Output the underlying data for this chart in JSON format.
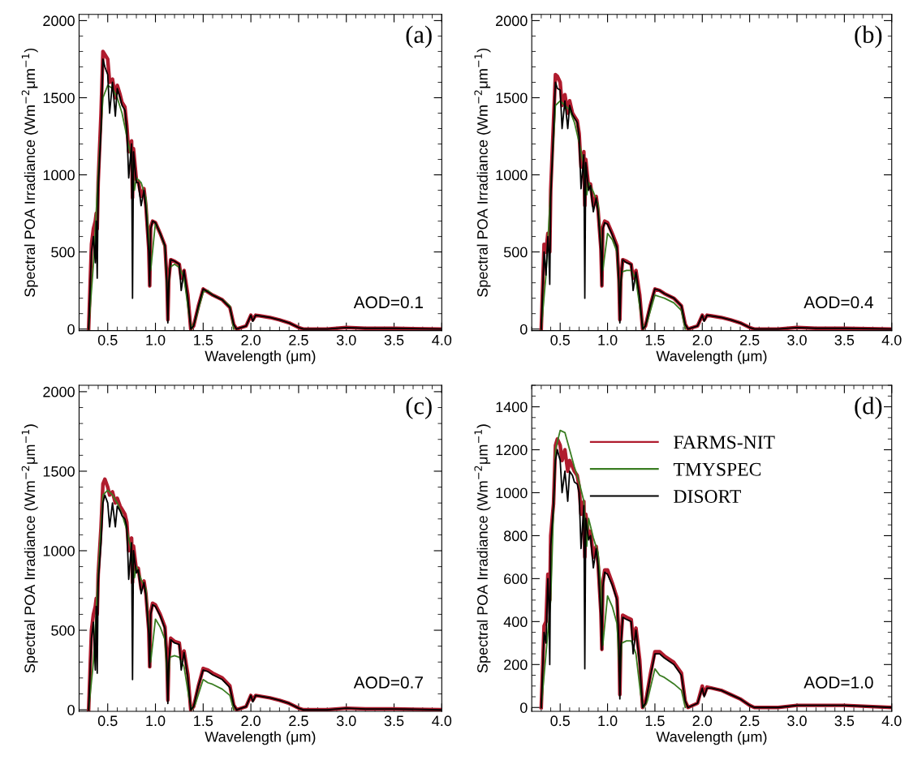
{
  "chart_data": [
    {
      "type": "line",
      "xlabel": "Wavelength (μm)",
      "ylabel": "Spectral POA Irradiance (Wm$^{−2}$μm$^{−1}$)",
      "xlim": [
        0.2,
        4.0
      ],
      "xticks": [
        {
          "value": 0.5,
          "label": "0.5"
        },
        {
          "value": 1.0,
          "label": "1.0"
        },
        {
          "value": 1.5,
          "label": "1.5"
        },
        {
          "value": 2.0,
          "label": "2.0"
        },
        {
          "value": 2.5,
          "label": "2.5"
        },
        {
          "value": 3.0,
          "label": "3.0"
        },
        {
          "value": 3.5,
          "label": "3.5"
        },
        {
          "value": 4.0,
          "label": "4.0"
        }
      ],
      "ylim": [
        -10,
        2040
      ],
      "yticks": [
        0,
        500,
        1000,
        1500,
        2000
      ],
      "annotations": [
        "(a)",
        "AOD=0.1"
      ],
      "line_style": "solid",
      "x": [
        0.3,
        0.33,
        0.35,
        0.37,
        0.38,
        0.39,
        0.4,
        0.43,
        0.45,
        0.47,
        0.5,
        0.52,
        0.55,
        0.58,
        0.6,
        0.63,
        0.65,
        0.68,
        0.7,
        0.72,
        0.75,
        0.76,
        0.77,
        0.8,
        0.82,
        0.85,
        0.88,
        0.9,
        0.93,
        0.94,
        0.95,
        0.97,
        1.0,
        1.05,
        1.1,
        1.12,
        1.13,
        1.14,
        1.16,
        1.2,
        1.25,
        1.27,
        1.3,
        1.34,
        1.37,
        1.4,
        1.45,
        1.5,
        1.55,
        1.6,
        1.7,
        1.78,
        1.82,
        1.85,
        1.95,
        2.0,
        2.02,
        2.05,
        2.1,
        2.2,
        2.3,
        2.4,
        2.5,
        2.55,
        2.8,
        3.0,
        3.2,
        3.5,
        4.0
      ],
      "series": [
        {
          "color": "#b01c2e",
          "values": [
            0,
            550,
            650,
            700,
            750,
            650,
            950,
            1400,
            1800,
            1780,
            1750,
            1600,
            1620,
            1500,
            1580,
            1520,
            1470,
            1440,
            1320,
            1150,
            1220,
            850,
            1170,
            970,
            960,
            860,
            910,
            800,
            520,
            280,
            660,
            700,
            690,
            620,
            540,
            320,
            60,
            320,
            450,
            440,
            420,
            330,
            380,
            220,
            0,
            20,
            150,
            260,
            240,
            220,
            190,
            140,
            30,
            0,
            20,
            90,
            60,
            90,
            85,
            75,
            60,
            40,
            10,
            0,
            0,
            10,
            5,
            5,
            0
          ]
        },
        {
          "color": "#3a7d22",
          "x": [
            0.3,
            0.35,
            0.4,
            0.45,
            0.5,
            0.55,
            0.6,
            0.65,
            0.7,
            0.75,
            0.78,
            0.8,
            0.85,
            0.9,
            0.93,
            0.95,
            1.0,
            1.05,
            1.1,
            1.13,
            1.15,
            1.2,
            1.25,
            1.3,
            1.35,
            1.38,
            1.42,
            1.5,
            1.55,
            1.6,
            1.7,
            1.78,
            1.82
          ],
          "values": [
            0,
            420,
            1000,
            1500,
            1580,
            1560,
            1500,
            1400,
            1250,
            1100,
            900,
            980,
            950,
            850,
            600,
            380,
            690,
            620,
            530,
            150,
            400,
            420,
            400,
            330,
            100,
            0,
            60,
            240,
            250,
            220,
            190,
            150,
            0
          ]
        },
        {
          "color": "#000000",
          "values": [
            0,
            500,
            600,
            430,
            700,
            330,
            900,
            1300,
            1750,
            1700,
            1650,
            1400,
            1600,
            1380,
            1560,
            1500,
            1450,
            1420,
            1300,
            980,
            1200,
            200,
            1150,
            950,
            950,
            800,
            900,
            780,
            500,
            280,
            650,
            700,
            690,
            620,
            540,
            300,
            40,
            300,
            450,
            440,
            420,
            250,
            380,
            200,
            0,
            20,
            150,
            260,
            240,
            220,
            190,
            140,
            30,
            0,
            20,
            90,
            50,
            90,
            85,
            75,
            60,
            40,
            10,
            0,
            0,
            10,
            5,
            5,
            0
          ]
        }
      ]
    },
    {
      "type": "line",
      "xlabel": "Wavelength (μm)",
      "ylabel": "Spectral POA Irradiance (Wm$^{−2}$μm$^{−1}$)",
      "xlim": [
        0.2,
        4.0
      ],
      "xticks": [
        {
          "value": 0.5,
          "label": "0.5"
        },
        {
          "value": 1.0,
          "label": "1.0"
        },
        {
          "value": 1.5,
          "label": "1.5"
        },
        {
          "value": 2.0,
          "label": "2.0"
        },
        {
          "value": 2.5,
          "label": "2.5"
        },
        {
          "value": 3.0,
          "label": "3.0"
        },
        {
          "value": 3.5,
          "label": "3.5"
        },
        {
          "value": 4.0,
          "label": "4.0"
        }
      ],
      "ylim": [
        -10,
        2040
      ],
      "yticks": [
        0,
        500,
        1000,
        1500,
        2000
      ],
      "annotations": [
        "(b)",
        "AOD=0.4"
      ],
      "line_style": "solid",
      "x": [
        0.3,
        0.33,
        0.35,
        0.37,
        0.38,
        0.39,
        0.4,
        0.43,
        0.45,
        0.47,
        0.5,
        0.52,
        0.55,
        0.58,
        0.6,
        0.63,
        0.65,
        0.68,
        0.7,
        0.72,
        0.75,
        0.76,
        0.77,
        0.8,
        0.82,
        0.85,
        0.88,
        0.9,
        0.93,
        0.94,
        0.95,
        0.97,
        1.0,
        1.05,
        1.1,
        1.12,
        1.13,
        1.14,
        1.16,
        1.2,
        1.25,
        1.27,
        1.3,
        1.34,
        1.37,
        1.4,
        1.45,
        1.5,
        1.55,
        1.6,
        1.7,
        1.78,
        1.82,
        1.85,
        1.95,
        2.0,
        2.02,
        2.05,
        2.1,
        2.2,
        2.3,
        2.4,
        2.5,
        2.55,
        2.8,
        3.0,
        3.2,
        3.5,
        4.0
      ],
      "series": [
        {
          "color": "#b01c2e",
          "values": [
            0,
            550,
            500,
            620,
            600,
            500,
            900,
            1350,
            1650,
            1640,
            1600,
            1450,
            1520,
            1400,
            1480,
            1400,
            1380,
            1350,
            1270,
            1050,
            1150,
            800,
            1100,
            920,
            940,
            800,
            860,
            770,
            520,
            280,
            660,
            700,
            690,
            620,
            540,
            320,
            60,
            320,
            450,
            440,
            420,
            330,
            380,
            220,
            0,
            20,
            150,
            260,
            250,
            230,
            200,
            150,
            30,
            0,
            20,
            90,
            60,
            90,
            85,
            75,
            60,
            40,
            10,
            0,
            0,
            10,
            5,
            5,
            0
          ]
        },
        {
          "color": "#3a7d22",
          "x": [
            0.3,
            0.35,
            0.4,
            0.45,
            0.5,
            0.55,
            0.6,
            0.65,
            0.7,
            0.75,
            0.78,
            0.8,
            0.85,
            0.9,
            0.93,
            0.95,
            1.0,
            1.05,
            1.1,
            1.13,
            1.15,
            1.2,
            1.25,
            1.3,
            1.35,
            1.38,
            1.42,
            1.5,
            1.55,
            1.6,
            1.7,
            1.78,
            1.82
          ],
          "values": [
            0,
            350,
            900,
            1450,
            1480,
            1450,
            1420,
            1340,
            1210,
            1060,
            870,
            950,
            890,
            810,
            560,
            380,
            620,
            580,
            500,
            170,
            370,
            380,
            380,
            320,
            100,
            0,
            50,
            220,
            210,
            200,
            170,
            120,
            0
          ]
        },
        {
          "color": "#000000",
          "values": [
            0,
            500,
            350,
            600,
            500,
            290,
            850,
            1300,
            1600,
            1560,
            1550,
            1300,
            1480,
            1300,
            1450,
            1390,
            1370,
            1340,
            1250,
            910,
            1130,
            200,
            1080,
            900,
            930,
            760,
            850,
            760,
            500,
            280,
            650,
            690,
            680,
            610,
            530,
            300,
            40,
            300,
            450,
            430,
            420,
            250,
            370,
            200,
            0,
            20,
            150,
            260,
            250,
            230,
            200,
            150,
            30,
            0,
            20,
            90,
            50,
            90,
            85,
            75,
            60,
            40,
            10,
            0,
            0,
            10,
            5,
            5,
            0
          ]
        }
      ]
    },
    {
      "type": "line",
      "xlabel": "Wavelength (μm)",
      "ylabel": "Spectral POA Irradiance (Wm$^{−2}$μm$^{−1}$)",
      "xlim": [
        0.2,
        4.0
      ],
      "xticks": [
        {
          "value": 0.5,
          "label": "0.5"
        },
        {
          "value": 1.0,
          "label": "1.0"
        },
        {
          "value": 1.5,
          "label": "1.5"
        },
        {
          "value": 2.0,
          "label": "2.0"
        },
        {
          "value": 2.5,
          "label": "2.5"
        },
        {
          "value": 3.0,
          "label": "3.0"
        },
        {
          "value": 3.5,
          "label": "3.5"
        },
        {
          "value": 4.0,
          "label": "4.0"
        }
      ],
      "ylim": [
        -10,
        2040
      ],
      "yticks": [
        0,
        500,
        1000,
        1500,
        2000
      ],
      "annotations": [
        "(c)",
        "AOD=0.7"
      ],
      "line_style": "solid",
      "x": [
        0.3,
        0.33,
        0.35,
        0.37,
        0.38,
        0.39,
        0.4,
        0.43,
        0.45,
        0.47,
        0.5,
        0.52,
        0.55,
        0.58,
        0.6,
        0.63,
        0.65,
        0.68,
        0.7,
        0.72,
        0.75,
        0.76,
        0.77,
        0.8,
        0.82,
        0.85,
        0.88,
        0.9,
        0.93,
        0.94,
        0.95,
        0.97,
        1.0,
        1.05,
        1.1,
        1.12,
        1.13,
        1.14,
        1.16,
        1.2,
        1.25,
        1.27,
        1.3,
        1.34,
        1.37,
        1.4,
        1.45,
        1.5,
        1.55,
        1.6,
        1.7,
        1.78,
        1.82,
        1.85,
        1.95,
        2.0,
        2.02,
        2.05,
        2.1,
        2.2,
        2.3,
        2.4,
        2.5,
        2.55,
        2.8,
        3.0,
        3.2,
        3.5,
        4.0
      ],
      "series": [
        {
          "color": "#b01c2e",
          "values": [
            0,
            500,
            600,
            650,
            700,
            600,
            850,
            1150,
            1420,
            1450,
            1400,
            1350,
            1370,
            1300,
            1330,
            1280,
            1260,
            1230,
            1180,
            1000,
            1080,
            800,
            1030,
            880,
            890,
            760,
            810,
            730,
            500,
            270,
            610,
            670,
            660,
            600,
            520,
            320,
            60,
            310,
            450,
            430,
            420,
            320,
            370,
            220,
            0,
            20,
            150,
            260,
            250,
            230,
            200,
            150,
            30,
            0,
            20,
            90,
            60,
            90,
            85,
            75,
            60,
            40,
            10,
            0,
            0,
            10,
            5,
            5,
            0
          ]
        },
        {
          "color": "#3a7d22",
          "x": [
            0.3,
            0.35,
            0.4,
            0.45,
            0.5,
            0.55,
            0.6,
            0.65,
            0.7,
            0.75,
            0.78,
            0.8,
            0.85,
            0.9,
            0.93,
            0.95,
            1.0,
            1.05,
            1.1,
            1.13,
            1.15,
            1.2,
            1.25,
            1.3,
            1.35,
            1.38,
            1.42,
            1.5,
            1.55,
            1.6,
            1.7,
            1.78,
            1.82
          ],
          "values": [
            0,
            300,
            850,
            1350,
            1380,
            1350,
            1300,
            1230,
            1130,
            1000,
            830,
            900,
            820,
            760,
            520,
            300,
            570,
            520,
            440,
            120,
            330,
            340,
            330,
            270,
            80,
            0,
            40,
            190,
            170,
            160,
            130,
            90,
            0
          ]
        },
        {
          "color": "#000000",
          "values": [
            0,
            450,
            550,
            250,
            650,
            230,
            800,
            1050,
            1300,
            1350,
            1300,
            1150,
            1300,
            1150,
            1280,
            1250,
            1220,
            1200,
            1150,
            820,
            1050,
            190,
            1000,
            860,
            880,
            730,
            800,
            720,
            480,
            270,
            600,
            660,
            650,
            590,
            510,
            300,
            40,
            290,
            440,
            420,
            410,
            250,
            360,
            200,
            0,
            20,
            150,
            250,
            240,
            220,
            190,
            140,
            30,
            0,
            20,
            90,
            50,
            90,
            85,
            75,
            60,
            40,
            10,
            0,
            0,
            10,
            5,
            5,
            0
          ]
        }
      ]
    },
    {
      "type": "line",
      "xlabel": "Wavelength (μm)",
      "ylabel": "Spectral POA Irradiance (Wm$^{−2}$μm$^{−1}$)",
      "xlim": [
        0.2,
        4.0
      ],
      "xticks": [
        {
          "value": 0.5,
          "label": "0.5"
        },
        {
          "value": 1.0,
          "label": "1.0"
        },
        {
          "value": 1.5,
          "label": "1.5"
        },
        {
          "value": 2.0,
          "label": "2.0"
        },
        {
          "value": 2.5,
          "label": "2.5"
        },
        {
          "value": 3.0,
          "label": "3.0"
        },
        {
          "value": 3.5,
          "label": "3.5"
        },
        {
          "value": 4.0,
          "label": "4.0"
        }
      ],
      "ylim": [
        -18,
        1500
      ],
      "yticks": [
        0,
        200,
        400,
        600,
        800,
        1000,
        1200,
        1400
      ],
      "annotations": [
        "(d)",
        "AOD=1.0"
      ],
      "line_style": "solid",
      "legend": "top",
      "x": [
        0.3,
        0.33,
        0.35,
        0.37,
        0.38,
        0.39,
        0.4,
        0.43,
        0.45,
        0.47,
        0.5,
        0.52,
        0.55,
        0.58,
        0.6,
        0.63,
        0.65,
        0.68,
        0.7,
        0.72,
        0.75,
        0.76,
        0.77,
        0.8,
        0.82,
        0.85,
        0.88,
        0.9,
        0.93,
        0.94,
        0.95,
        0.97,
        1.0,
        1.05,
        1.1,
        1.12,
        1.13,
        1.14,
        1.16,
        1.2,
        1.25,
        1.27,
        1.3,
        1.34,
        1.37,
        1.4,
        1.45,
        1.5,
        1.55,
        1.6,
        1.7,
        1.78,
        1.82,
        1.85,
        1.95,
        2.0,
        2.02,
        2.05,
        2.1,
        2.2,
        2.3,
        2.4,
        2.5,
        2.55,
        2.8,
        3.0,
        3.2,
        3.5,
        4.0
      ],
      "series": [
        {
          "name": "FARMS-NIT",
          "color": "#b01c2e",
          "values": [
            0,
            380,
            400,
            620,
            620,
            500,
            800,
            950,
            1220,
            1250,
            1220,
            1150,
            1200,
            1100,
            1150,
            1120,
            1100,
            1080,
            1030,
            900,
            960,
            700,
            900,
            800,
            820,
            700,
            750,
            670,
            440,
            270,
            580,
            640,
            640,
            580,
            510,
            320,
            60,
            300,
            430,
            420,
            410,
            320,
            370,
            220,
            0,
            20,
            150,
            260,
            260,
            240,
            210,
            160,
            30,
            0,
            20,
            100,
            60,
            95,
            90,
            80,
            60,
            40,
            10,
            0,
            0,
            10,
            10,
            10,
            0
          ]
        },
        {
          "name": "TMYSPEC",
          "color": "#3a7d22",
          "x": [
            0.3,
            0.35,
            0.4,
            0.45,
            0.5,
            0.55,
            0.6,
            0.65,
            0.7,
            0.75,
            0.78,
            0.8,
            0.85,
            0.9,
            0.93,
            0.95,
            1.0,
            1.05,
            1.1,
            1.13,
            1.15,
            1.2,
            1.25,
            1.3,
            1.35,
            1.38,
            1.42,
            1.5,
            1.55,
            1.6,
            1.7,
            1.78,
            1.82
          ],
          "values": [
            0,
            250,
            500,
            1200,
            1290,
            1280,
            1200,
            1120,
            1050,
            960,
            750,
            880,
            790,
            720,
            560,
            290,
            520,
            470,
            390,
            130,
            300,
            310,
            310,
            250,
            60,
            0,
            30,
            180,
            150,
            140,
            110,
            80,
            0
          ]
        },
        {
          "name": "DISORT",
          "color": "#000000",
          "values": [
            0,
            350,
            300,
            600,
            500,
            200,
            750,
            950,
            1150,
            1200,
            1150,
            1000,
            1100,
            960,
            1100,
            1080,
            1050,
            1040,
            1000,
            740,
            940,
            180,
            880,
            780,
            800,
            650,
            740,
            660,
            420,
            270,
            560,
            630,
            620,
            570,
            500,
            300,
            40,
            280,
            420,
            410,
            400,
            250,
            360,
            200,
            0,
            20,
            140,
            250,
            250,
            230,
            200,
            150,
            30,
            0,
            20,
            90,
            50,
            90,
            90,
            80,
            60,
            40,
            10,
            0,
            0,
            10,
            10,
            10,
            0
          ]
        }
      ]
    }
  ]
}
